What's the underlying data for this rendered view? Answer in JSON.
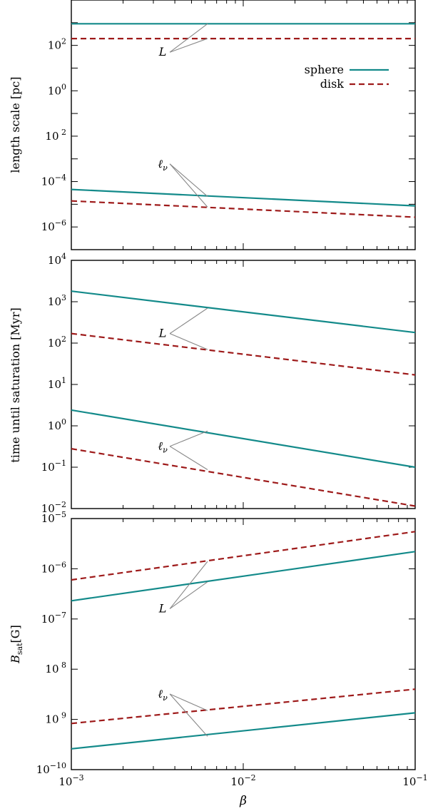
{
  "chart_data": [
    {
      "type": "line",
      "panel": "top",
      "ylabel": "length scale [pc]",
      "xlabel": "",
      "xlim": [
        0.001,
        0.1
      ],
      "ylim": [
        1e-07,
        10000
      ],
      "x_ticks": [
        "",
        "",
        ""
      ],
      "y_ticks": [
        {
          "value": 100,
          "label": "10",
          "exp": "2"
        },
        {
          "value": 1,
          "label": "10",
          "exp": "0"
        },
        {
          "value": 0.01,
          "label": "10",
          "exp": " 2"
        },
        {
          "value": 0.0001,
          "label": "10",
          "exp": "−4"
        },
        {
          "value": 1e-06,
          "label": "10",
          "exp": "−6"
        }
      ],
      "legend": {
        "placement": "top-right",
        "entries": [
          {
            "label": "sphere",
            "color": "#138a8a",
            "style": "solid"
          },
          {
            "label": "disk",
            "color": "#9e1a1a",
            "style": "dashed"
          }
        ]
      },
      "annotations": [
        {
          "text": "L",
          "x_label": 0.0034,
          "y_label": 50,
          "targets": [
            [
              0.0062,
              900
            ],
            [
              0.0062,
              200
            ]
          ]
        },
        {
          "text": "ℓ",
          "sub": "ν",
          "x_label": 0.0034,
          "y_label": 0.0006,
          "targets": [
            [
              0.0062,
              2.2e-05
            ],
            [
              0.0062,
              7.5e-06
            ]
          ]
        }
      ],
      "series": [
        {
          "name": "sphere",
          "style": "solid",
          "color": "#138a8a",
          "x": [
            0.001,
            0.1
          ],
          "y": [
            900,
            900
          ]
        },
        {
          "name": "disk",
          "style": "dashed",
          "color": "#9e1a1a",
          "x": [
            0.001,
            0.1
          ],
          "y": [
            200,
            200
          ]
        },
        {
          "name": "sphere",
          "style": "solid",
          "color": "#138a8a",
          "x": [
            0.001,
            0.1
          ],
          "y": [
            4.5e-05,
            8.5e-06
          ]
        },
        {
          "name": "disk",
          "style": "dashed",
          "color": "#9e1a1a",
          "x": [
            0.001,
            0.1
          ],
          "y": [
            1.4e-05,
            2.7e-06
          ]
        }
      ]
    },
    {
      "type": "line",
      "panel": "middle",
      "ylabel": "time until saturation [Myr]",
      "xlabel": "",
      "xlim": [
        0.001,
        0.1
      ],
      "ylim": [
        0.01,
        10000
      ],
      "x_ticks": [
        "",
        "",
        ""
      ],
      "y_ticks": [
        {
          "value": 10000,
          "label": "10",
          "exp": "4"
        },
        {
          "value": 1000,
          "label": "10",
          "exp": "3"
        },
        {
          "value": 100,
          "label": "10",
          "exp": "2"
        },
        {
          "value": 10,
          "label": "10",
          "exp": "1"
        },
        {
          "value": 1,
          "label": "10",
          "exp": "0"
        },
        {
          "value": 0.1,
          "label": "10",
          "exp": "−1"
        },
        {
          "value": 0.01,
          "label": "10",
          "exp": "−2"
        }
      ],
      "annotations": [
        {
          "text": "L",
          "x_label": 0.0034,
          "y_label": 170,
          "targets": [
            [
              0.0062,
              700
            ],
            [
              0.0062,
              70
            ]
          ]
        },
        {
          "text": "ℓ",
          "sub": "ν",
          "x_label": 0.0034,
          "y_label": 0.32,
          "targets": [
            [
              0.0062,
              0.75
            ],
            [
              0.0062,
              0.087
            ]
          ]
        }
      ],
      "series": [
        {
          "name": "sphere",
          "style": "solid",
          "color": "#138a8a",
          "x": [
            0.001,
            0.1
          ],
          "y": [
            1800,
            180
          ]
        },
        {
          "name": "disk",
          "style": "dashed",
          "color": "#9e1a1a",
          "x": [
            0.001,
            0.1
          ],
          "y": [
            170,
            17
          ]
        },
        {
          "name": "sphere",
          "style": "solid",
          "color": "#138a8a",
          "x": [
            0.001,
            0.1
          ],
          "y": [
            2.4,
            0.1
          ]
        },
        {
          "name": "disk",
          "style": "dashed",
          "color": "#9e1a1a",
          "x": [
            0.001,
            0.1
          ],
          "y": [
            0.28,
            0.0115
          ]
        }
      ]
    },
    {
      "type": "line",
      "panel": "bottom",
      "ylabel": "B",
      "ylabel_sub": "sat",
      "ylabel_unit": "[G]",
      "xlabel": "β",
      "xlim": [
        0.001,
        0.1
      ],
      "ylim": [
        1e-10,
        1e-05
      ],
      "x_ticks": [
        {
          "value": 0.001,
          "label": "10",
          "exp": "−3"
        },
        {
          "value": 0.01,
          "label": "10",
          "exp": "−2"
        },
        {
          "value": 0.1,
          "label": "10",
          "exp": "−1"
        }
      ],
      "y_ticks": [
        {
          "value": 1e-05,
          "label": "10",
          "exp": "−5"
        },
        {
          "value": 1e-06,
          "label": "10",
          "exp": "−6"
        },
        {
          "value": 1e-07,
          "label": "10",
          "exp": "−7"
        },
        {
          "value": 1e-08,
          "label": "10",
          "exp": " 8"
        },
        {
          "value": 1e-09,
          "label": "10",
          "exp": " 9"
        },
        {
          "value": 1e-10,
          "label": "10",
          "exp": "−10"
        }
      ],
      "annotations": [
        {
          "text": "L",
          "x_label": 0.0034,
          "y_label": 1.6e-07,
          "targets": [
            [
              0.0062,
              1.4e-06
            ],
            [
              0.0062,
              5.5e-07
            ]
          ]
        },
        {
          "text": "ℓ",
          "sub": "ν",
          "x_label": 0.0034,
          "y_label": 3.2e-09,
          "targets": [
            [
              0.0062,
              1.5e-09
            ],
            [
              0.0062,
              4.6e-10
            ]
          ]
        }
      ],
      "series": [
        {
          "name": "sphere",
          "style": "solid",
          "color": "#138a8a",
          "x": [
            0.001,
            0.1
          ],
          "y": [
            2.3e-07,
            2.2e-06
          ]
        },
        {
          "name": "disk",
          "style": "dashed",
          "color": "#9e1a1a",
          "x": [
            0.001,
            0.1
          ],
          "y": [
            6e-07,
            5.5e-06
          ]
        },
        {
          "name": "sphere",
          "style": "solid",
          "color": "#138a8a",
          "x": [
            0.001,
            0.1
          ],
          "y": [
            2.6e-10,
            1.35e-09
          ]
        },
        {
          "name": "disk",
          "style": "dashed",
          "color": "#9e1a1a",
          "x": [
            0.001,
            0.1
          ],
          "y": [
            8.3e-10,
            4e-09
          ]
        }
      ]
    }
  ]
}
